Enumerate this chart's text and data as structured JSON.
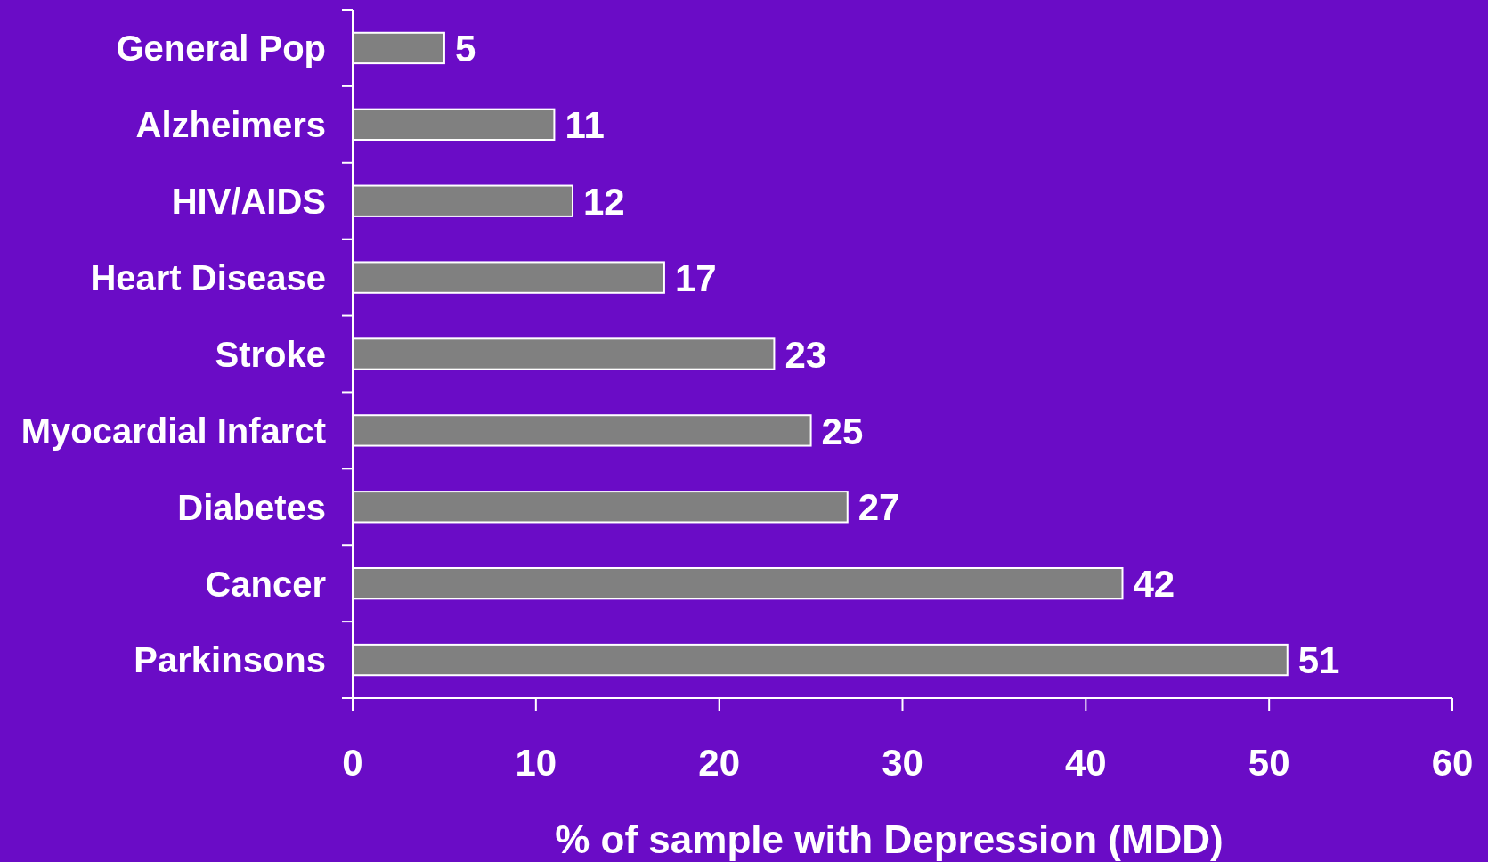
{
  "chart_data": {
    "type": "bar",
    "orientation": "horizontal",
    "xlabel": "% of sample with Depression (MDD)",
    "categories": [
      "General Pop",
      "Alzheimers",
      "HIV/AIDS",
      "Heart Disease",
      "Stroke",
      "Myocardial Infarct",
      "Diabetes",
      "Cancer",
      "Parkinsons"
    ],
    "values": [
      5,
      11,
      12,
      17,
      23,
      25,
      27,
      42,
      51
    ],
    "color": "#808080",
    "data_labels": true,
    "xlim": [
      0,
      60
    ],
    "xticks": [
      0,
      10,
      20,
      30,
      40,
      50,
      60
    ],
    "grid": false
  }
}
